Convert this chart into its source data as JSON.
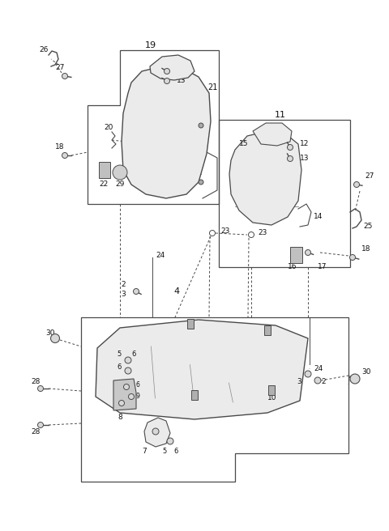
{
  "bg_color": "#ffffff",
  "line_color": "#4a4a4a",
  "text_color": "#111111",
  "gray_fill": "#d8d8d8",
  "light_gray": "#ebebeb",
  "fig_width": 4.8,
  "fig_height": 6.56,
  "dpi": 100
}
